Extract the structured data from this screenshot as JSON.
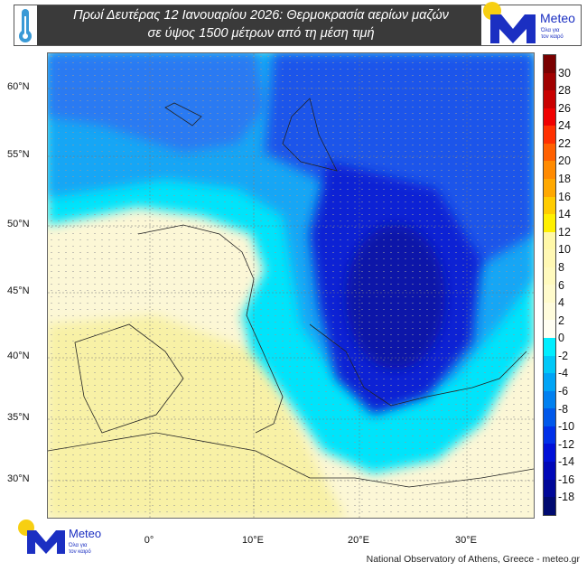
{
  "header": {
    "title_line1": "Πρωί Δευτέρας 12 Ιανουαρίου 2026: Θερμοκρασία αερίων μαζών",
    "title_line2": "σε ύψος 1500 μέτρων από τη μέση τιμή",
    "icon": "thermometer-icon"
  },
  "logo": {
    "name": "Meteo",
    "tagline_1": "Όλα για",
    "tagline_2": "τον καιρό"
  },
  "map": {
    "lat_labels": [
      "60°N",
      "55°N",
      "50°N",
      "45°N",
      "40°N",
      "35°N",
      "30°N"
    ],
    "lon_labels": [
      "0°",
      "10°E",
      "20°E",
      "30°E"
    ]
  },
  "colorbar": {
    "ticks": [
      "30",
      "28",
      "26",
      "24",
      "22",
      "20",
      "18",
      "16",
      "14",
      "12",
      "10",
      "8",
      "6",
      "4",
      "2",
      "0",
      "-2",
      "-4",
      "-6",
      "-8",
      "-10",
      "-12",
      "-14",
      "-16",
      "-18"
    ],
    "colors": [
      "#7a0000",
      "#a00000",
      "#c80000",
      "#f00000",
      "#ff3000",
      "#ff6000",
      "#ff8a00",
      "#ffa800",
      "#ffcc00",
      "#fff000",
      "#fff8a8",
      "#fff8b4",
      "#fffabe",
      "#fffbcc",
      "#fffcdc",
      "#fffef2",
      "#00eeff",
      "#00c8f8",
      "#00a4f6",
      "#0080f0",
      "#0058ea",
      "#0030e8",
      "#0010d8",
      "#0008b8",
      "#000898",
      "#000a70"
    ]
  },
  "credit": "National Observatory of Athens, Greece - meteo.gr"
}
